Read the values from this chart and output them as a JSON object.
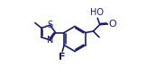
{
  "bg_color": "#ffffff",
  "line_color": "#1a1a6e",
  "text_color": "#1a1a6e",
  "bond_lw": 1.2,
  "font_size": 6.5,
  "figsize": [
    1.62,
    0.83
  ],
  "dpi": 100,
  "label_F": "F",
  "label_S": "S",
  "label_N": "N",
  "label_HO": "HO",
  "label_O": "O"
}
